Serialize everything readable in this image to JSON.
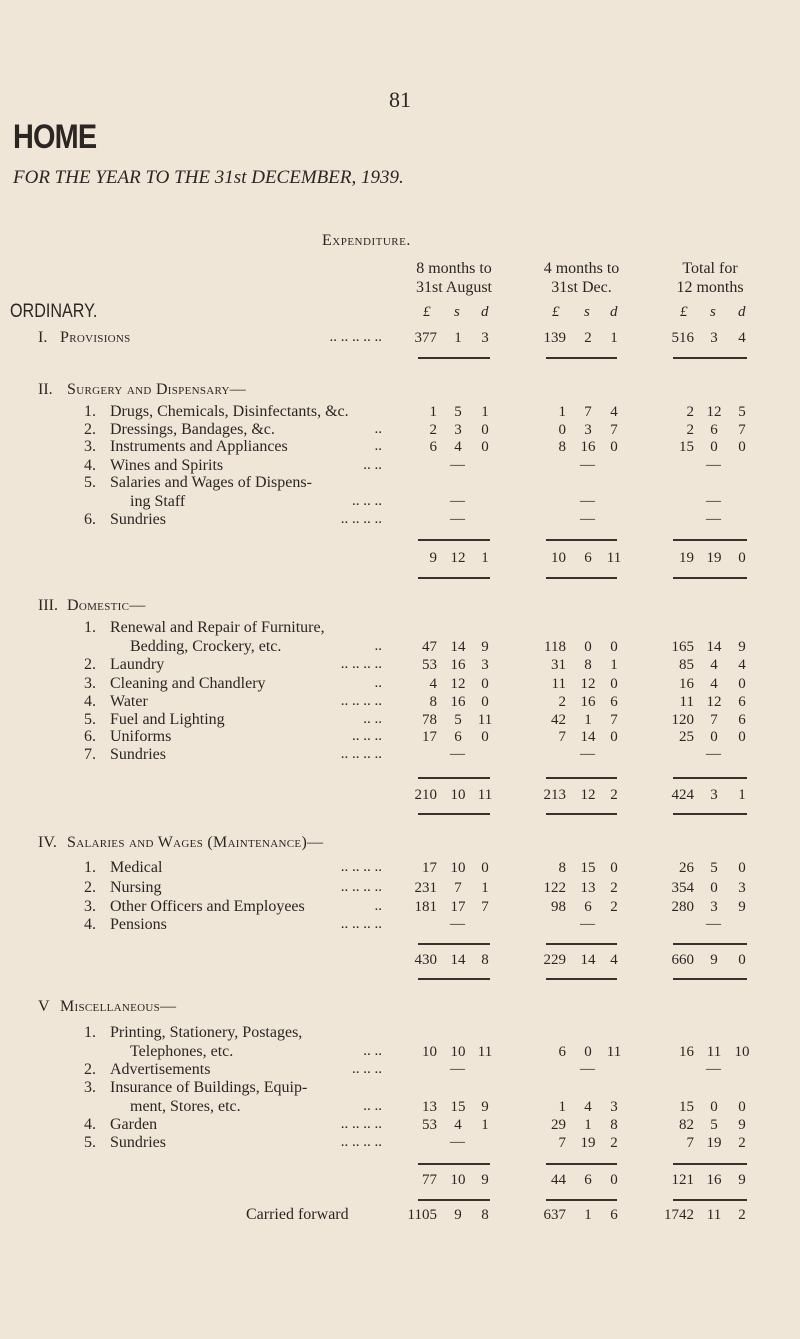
{
  "header": {
    "page_number": "81",
    "title": "HOME",
    "subtitle": "FOR THE YEAR TO THE 31st DECEMBER, 1939.",
    "section_title": "Expenditure.",
    "ordinary": "ORDINARY."
  },
  "columns": [
    {
      "line1": "8 months to",
      "line2": "31st August"
    },
    {
      "line1": "4 months to",
      "line2": "31st Dec."
    },
    {
      "line1": "Total for",
      "line2": "12 months"
    }
  ],
  "currency": [
    "£",
    "s",
    "d"
  ],
  "rows": [
    {
      "k": "head",
      "num": "I.",
      "text": "Provisions",
      "dots": ".. .. .. .. ..",
      "v": [
        [
          "377",
          "1",
          "3"
        ],
        [
          "139",
          "2",
          "1"
        ],
        [
          "516",
          "3",
          "4"
        ]
      ]
    },
    {
      "k": "head",
      "num": "II.",
      "text": "Surgery and Dispensary—"
    },
    {
      "k": "item",
      "num": "1.",
      "text": "Drugs, Chemicals, Disinfectants, &c.",
      "v": [
        [
          "1",
          "5",
          "1"
        ],
        [
          "1",
          "7",
          "4"
        ],
        [
          "2",
          "12",
          "5"
        ]
      ]
    },
    {
      "k": "item",
      "num": "2.",
      "text": "Dressings, Bandages, &c.",
      "dots": "..",
      "v": [
        [
          "2",
          "3",
          "0"
        ],
        [
          "0",
          "3",
          "7"
        ],
        [
          "2",
          "6",
          "7"
        ]
      ]
    },
    {
      "k": "item",
      "num": "3.",
      "text": "Instruments and Appliances",
      "dots": "..",
      "v": [
        [
          "6",
          "4",
          "0"
        ],
        [
          "8",
          "16",
          "0"
        ],
        [
          "15",
          "0",
          "0"
        ]
      ]
    },
    {
      "k": "item",
      "num": "4.",
      "text": "Wines and Spirits",
      "dots": ".. ..",
      "v": [
        "—",
        "—",
        "—"
      ]
    },
    {
      "k": "item",
      "num": "5.",
      "text": "Salaries and Wages of Dispens-"
    },
    {
      "k": "sub",
      "text": "ing Staff",
      "dots": ".. .. ..",
      "v": [
        "—",
        "—",
        "—"
      ]
    },
    {
      "k": "item",
      "num": "6.",
      "text": "Sundries",
      "dots": ".. .. .. ..",
      "v": [
        "—",
        "—",
        "—"
      ]
    },
    {
      "k": "total",
      "v": [
        [
          "9",
          "12",
          "1"
        ],
        [
          "10",
          "6",
          "11"
        ],
        [
          "19",
          "19",
          "0"
        ]
      ]
    },
    {
      "k": "head",
      "num": "III.",
      "text": "Domestic—"
    },
    {
      "k": "item",
      "num": "1.",
      "text": "Renewal and Repair of Furniture,"
    },
    {
      "k": "sub",
      "text": "Bedding, Crockery, etc.",
      "dots": "..",
      "v": [
        [
          "47",
          "14",
          "9"
        ],
        [
          "118",
          "0",
          "0"
        ],
        [
          "165",
          "14",
          "9"
        ]
      ]
    },
    {
      "k": "item",
      "num": "2.",
      "text": "Laundry",
      "dots": ".. .. .. ..",
      "v": [
        [
          "53",
          "16",
          "3"
        ],
        [
          "31",
          "8",
          "1"
        ],
        [
          "85",
          "4",
          "4"
        ]
      ]
    },
    {
      "k": "item",
      "num": "3.",
      "text": "Cleaning and Chandlery",
      "dots": "..",
      "v": [
        [
          "4",
          "12",
          "0"
        ],
        [
          "11",
          "12",
          "0"
        ],
        [
          "16",
          "4",
          "0"
        ]
      ]
    },
    {
      "k": "item",
      "num": "4.",
      "text": "Water",
      "dots": ".. .. .. ..",
      "v": [
        [
          "8",
          "16",
          "0"
        ],
        [
          "2",
          "16",
          "6"
        ],
        [
          "11",
          "12",
          "6"
        ]
      ]
    },
    {
      "k": "item",
      "num": "5.",
      "text": "Fuel and Lighting",
      "dots": ".. ..",
      "v": [
        [
          "78",
          "5",
          "11"
        ],
        [
          "42",
          "1",
          "7"
        ],
        [
          "120",
          "7",
          "6"
        ]
      ]
    },
    {
      "k": "item",
      "num": "6.",
      "text": "Uniforms",
      "dots": ".. .. ..",
      "v": [
        [
          "17",
          "6",
          "0"
        ],
        [
          "7",
          "14",
          "0"
        ],
        [
          "25",
          "0",
          "0"
        ]
      ]
    },
    {
      "k": "item",
      "num": "7.",
      "text": "Sundries",
      "dots": ".. .. .. ..",
      "v": [
        "—",
        "—",
        "—"
      ]
    },
    {
      "k": "total",
      "v": [
        [
          "210",
          "10",
          "11"
        ],
        [
          "213",
          "12",
          "2"
        ],
        [
          "424",
          "3",
          "1"
        ]
      ]
    },
    {
      "k": "head",
      "num": "IV.",
      "text": "Salaries and Wages (Maintenance)—"
    },
    {
      "k": "item",
      "num": "1.",
      "text": "Medical",
      "dots": ".. .. .. ..",
      "v": [
        [
          "17",
          "10",
          "0"
        ],
        [
          "8",
          "15",
          "0"
        ],
        [
          "26",
          "5",
          "0"
        ]
      ]
    },
    {
      "k": "item",
      "num": "2.",
      "text": "Nursing",
      "dots": ".. .. .. ..",
      "v": [
        [
          "231",
          "7",
          "1"
        ],
        [
          "122",
          "13",
          "2"
        ],
        [
          "354",
          "0",
          "3"
        ]
      ]
    },
    {
      "k": "item",
      "num": "3.",
      "text": "Other Officers and Employees",
      "dots": "..",
      "v": [
        [
          "181",
          "17",
          "7"
        ],
        [
          "98",
          "6",
          "2"
        ],
        [
          "280",
          "3",
          "9"
        ]
      ]
    },
    {
      "k": "item",
      "num": "4.",
      "text": "Pensions",
      "dots": ".. .. .. ..",
      "v": [
        "—",
        "—",
        "—"
      ]
    },
    {
      "k": "total",
      "v": [
        [
          "430",
          "14",
          "8"
        ],
        [
          "229",
          "14",
          "4"
        ],
        [
          "660",
          "9",
          "0"
        ]
      ]
    },
    {
      "k": "head",
      "num": "V",
      "text": "Miscellaneous—"
    },
    {
      "k": "item",
      "num": "1.",
      "text": "Printing, Stationery, Postages,"
    },
    {
      "k": "sub",
      "text": "Telephones, etc.",
      "dots": ".. ..",
      "v": [
        [
          "10",
          "10",
          "11"
        ],
        [
          "6",
          "0",
          "11"
        ],
        [
          "16",
          "11",
          "10"
        ]
      ]
    },
    {
      "k": "item",
      "num": "2.",
      "text": "Advertisements",
      "dots": ".. .. ..",
      "v": [
        "—",
        "—",
        "—"
      ]
    },
    {
      "k": "item",
      "num": "3.",
      "text": "Insurance of Buildings, Equip-"
    },
    {
      "k": "sub",
      "text": "ment, Stores, etc.",
      "dots": ".. ..",
      "v": [
        [
          "13",
          "15",
          "9"
        ],
        [
          "1",
          "4",
          "3"
        ],
        [
          "15",
          "0",
          "0"
        ]
      ]
    },
    {
      "k": "item",
      "num": "4.",
      "text": "Garden",
      "dots": ".. .. .. ..",
      "v": [
        [
          "53",
          "4",
          "1"
        ],
        [
          "29",
          "1",
          "8"
        ],
        [
          "82",
          "5",
          "9"
        ]
      ]
    },
    {
      "k": "item",
      "num": "5.",
      "text": "Sundries",
      "dots": ".. .. .. ..",
      "v": [
        "—",
        [
          "7",
          "19",
          "2"
        ],
        [
          "7",
          "19",
          "2"
        ]
      ]
    },
    {
      "k": "total",
      "v": [
        [
          "77",
          "10",
          "9"
        ],
        [
          "44",
          "6",
          "0"
        ],
        [
          "121",
          "16",
          "9"
        ]
      ]
    },
    {
      "k": "cf",
      "text": "Carried forward",
      "v": [
        [
          "1105",
          "9",
          "8"
        ],
        [
          "637",
          "1",
          "6"
        ],
        [
          "1742",
          "11",
          "2"
        ]
      ]
    }
  ]
}
